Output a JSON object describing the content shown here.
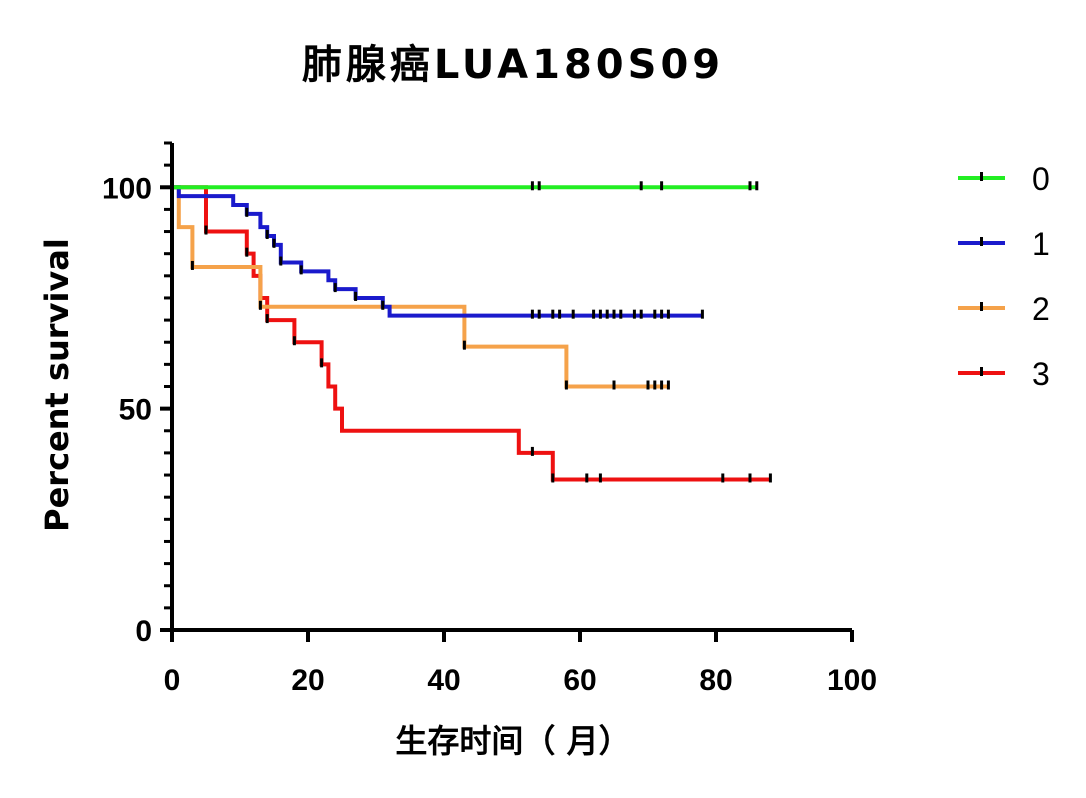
{
  "chart_data": {
    "type": "line",
    "title": "肺腺癌LUA180S09",
    "xlabel": "生存时间（ 月）",
    "ylabel": "Percent survival",
    "xlim": [
      0,
      100
    ],
    "ylim": [
      0,
      110
    ],
    "x_ticks": [
      "0",
      "20",
      "40",
      "60",
      "80",
      "100"
    ],
    "y_ticks": [
      "0",
      "50",
      "100"
    ],
    "grid": false,
    "legend_position": "right",
    "series": [
      {
        "name": "0",
        "color": "#22ee22",
        "steps": [
          [
            0,
            100
          ],
          [
            86,
            100
          ]
        ],
        "censors": [
          [
            53,
            100
          ],
          [
            54,
            100
          ],
          [
            69,
            100
          ],
          [
            72,
            100
          ],
          [
            85,
            100
          ],
          [
            86,
            100
          ]
        ]
      },
      {
        "name": "1",
        "color": "#1a1acc",
        "steps": [
          [
            0,
            100
          ],
          [
            1,
            98
          ],
          [
            9,
            96
          ],
          [
            11,
            94
          ],
          [
            13,
            91
          ],
          [
            14,
            89
          ],
          [
            15,
            87
          ],
          [
            16,
            83
          ],
          [
            19,
            81
          ],
          [
            23,
            79
          ],
          [
            24,
            77
          ],
          [
            27,
            75
          ],
          [
            31,
            73
          ],
          [
            32,
            71
          ],
          [
            78,
            71
          ]
        ],
        "censors": [
          [
            11,
            94
          ],
          [
            14,
            89
          ],
          [
            15,
            87
          ],
          [
            16,
            83
          ],
          [
            19,
            81
          ],
          [
            24,
            77
          ],
          [
            27,
            75
          ],
          [
            31,
            73
          ],
          [
            53,
            71
          ],
          [
            54,
            71
          ],
          [
            56,
            71
          ],
          [
            57,
            71
          ],
          [
            59,
            71
          ],
          [
            62,
            71
          ],
          [
            63,
            71
          ],
          [
            64,
            71
          ],
          [
            65,
            71
          ],
          [
            66,
            71
          ],
          [
            68,
            71
          ],
          [
            69,
            71
          ],
          [
            71,
            71
          ],
          [
            72,
            71
          ],
          [
            73,
            71
          ],
          [
            78,
            71
          ]
        ]
      },
      {
        "name": "2",
        "color": "#f5a24a",
        "steps": [
          [
            0,
            100
          ],
          [
            1,
            91
          ],
          [
            3,
            82
          ],
          [
            13,
            73
          ],
          [
            43,
            64
          ],
          [
            58,
            55
          ],
          [
            73,
            55
          ]
        ],
        "censors": [
          [
            3,
            82
          ],
          [
            13,
            73
          ],
          [
            43,
            64
          ],
          [
            58,
            55
          ],
          [
            65,
            55
          ],
          [
            70,
            55
          ],
          [
            71,
            55
          ],
          [
            72,
            55
          ],
          [
            73,
            55
          ]
        ]
      },
      {
        "name": "3",
        "color": "#ee1111",
        "steps": [
          [
            0,
            100
          ],
          [
            5,
            90
          ],
          [
            11,
            85
          ],
          [
            12,
            80
          ],
          [
            13,
            75
          ],
          [
            14,
            70
          ],
          [
            18,
            65
          ],
          [
            22,
            60
          ],
          [
            23,
            55
          ],
          [
            24,
            50
          ],
          [
            25,
            45
          ],
          [
            51,
            40
          ],
          [
            56,
            34
          ],
          [
            88,
            34
          ]
        ],
        "censors": [
          [
            5,
            90
          ],
          [
            11,
            85
          ],
          [
            14,
            70
          ],
          [
            18,
            65
          ],
          [
            22,
            60
          ],
          [
            53,
            40
          ],
          [
            56,
            34
          ],
          [
            61,
            34
          ],
          [
            63,
            34
          ],
          [
            81,
            34
          ],
          [
            85,
            34
          ],
          [
            88,
            34
          ]
        ]
      }
    ]
  }
}
